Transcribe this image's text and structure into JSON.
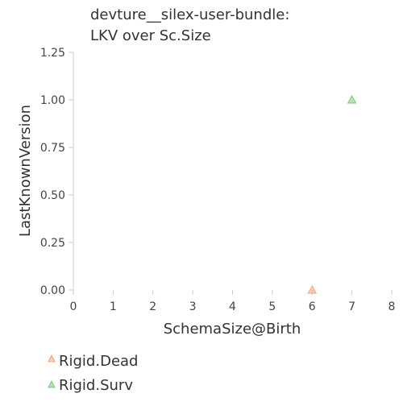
{
  "chart_data": {
    "type": "scatter",
    "title_lines": [
      "devture__silex-user-bundle:",
      "LKV over Sc.Size"
    ],
    "xlabel": "SchemaSize@Birth",
    "ylabel": "LastKnownVersion",
    "xlim": [
      0,
      8
    ],
    "ylim": [
      0,
      1.25
    ],
    "x_ticks": [
      "0",
      "1",
      "2",
      "3",
      "4",
      "5",
      "6",
      "7",
      "8"
    ],
    "y_ticks": [
      "0.00",
      "0.25",
      "0.50",
      "0.75",
      "1.00",
      "1.25"
    ],
    "grid": false,
    "legend_position": "bottom-left",
    "series": [
      {
        "name": "Rigid.Dead",
        "marker": "triangle",
        "color": "#f4a582",
        "points": [
          {
            "x": 6,
            "y": 0
          }
        ]
      },
      {
        "name": "Rigid.Surv",
        "marker": "triangle",
        "color": "#7fc97f",
        "points": [
          {
            "x": 7,
            "y": 1
          }
        ]
      }
    ]
  }
}
